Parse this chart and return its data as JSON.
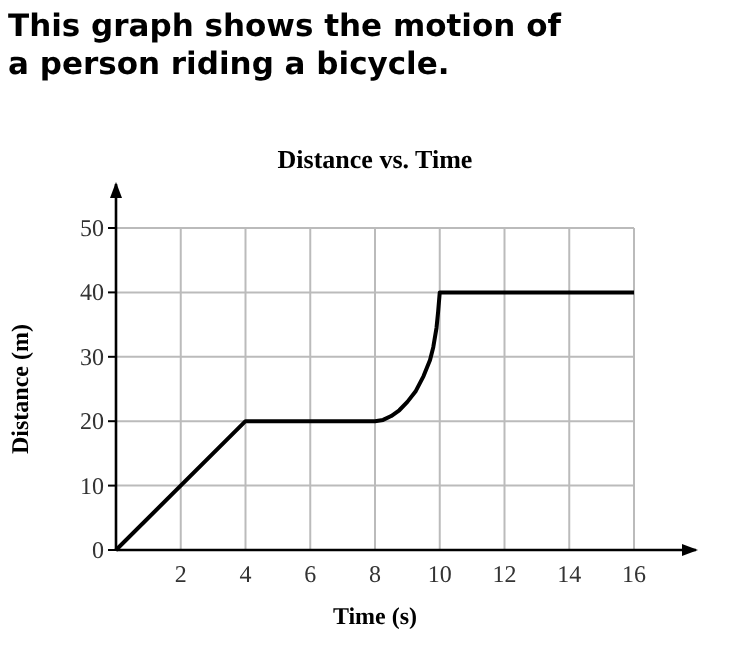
{
  "chart_data": {
    "type": "line",
    "title": "This graph shows the motion of a person riding a bicycle.",
    "subtitle": "Distance vs. Time",
    "xlabel": "Time (s)",
    "ylabel": "Distance (m)",
    "x": [
      0,
      4,
      8,
      8.25,
      8.5,
      8.75,
      9,
      9.25,
      9.5,
      9.7,
      9.8,
      9.9,
      9.95,
      10,
      16
    ],
    "series": [
      {
        "color": "#000000",
        "values": [
          0,
          20,
          20,
          20.2,
          20.8,
          21.7,
          23,
          24.6,
          27,
          29.5,
          31.5,
          34.5,
          37,
          40,
          40
        ]
      }
    ],
    "xlim": [
      0,
      16
    ],
    "ylim": [
      0,
      50
    ],
    "xticks": [
      2,
      4,
      6,
      8,
      10,
      12,
      14,
      16
    ],
    "yticks": [
      0,
      10,
      20,
      30,
      40,
      50
    ],
    "grid": true,
    "marker": "none",
    "line_style": "solid"
  }
}
